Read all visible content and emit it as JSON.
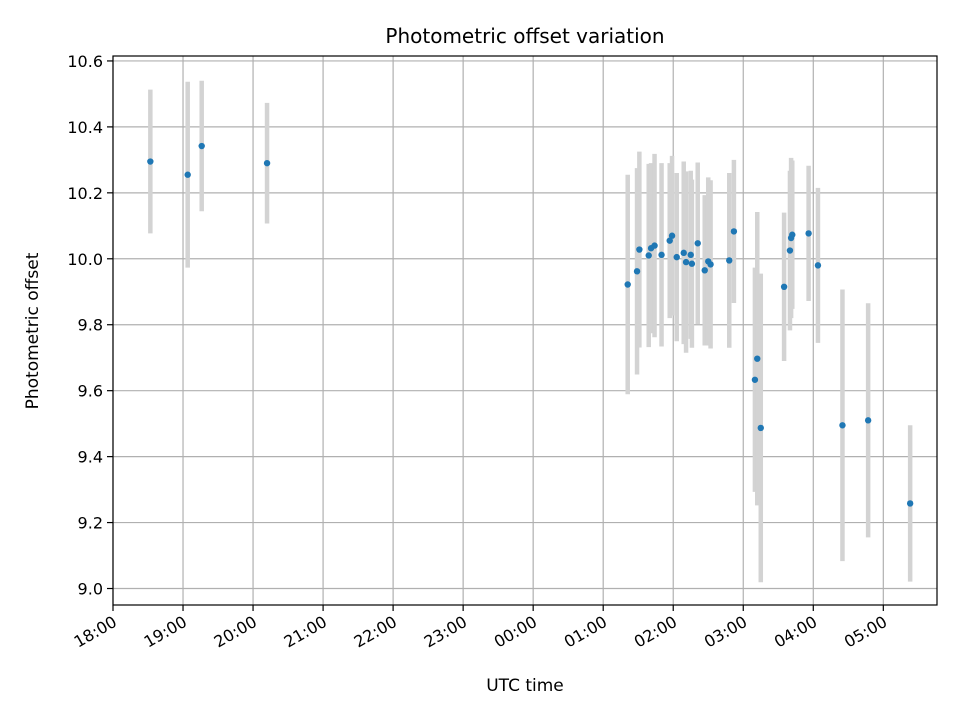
{
  "chart_data": {
    "type": "scatter",
    "title": "Photometric offset variation",
    "xlabel": "UTC time",
    "ylabel": "Photometric offset",
    "x_tick_labels": [
      "18:00",
      "19:00",
      "20:00",
      "21:00",
      "22:00",
      "23:00",
      "00:00",
      "01:00",
      "02:00",
      "03:00",
      "04:00",
      "05:00"
    ],
    "y_tick_labels": [
      "9.0",
      "9.2",
      "9.4",
      "9.6",
      "9.8",
      "10.0",
      "10.2",
      "10.4",
      "10.6"
    ],
    "xlim": [
      "18:00",
      "05:46"
    ],
    "ylim": [
      8.95,
      10.615
    ],
    "grid": true,
    "colors": {
      "points": "#1f77b4",
      "errorbars": "#d3d3d3",
      "grid": "#b0b0b0"
    },
    "points": [
      {
        "x": "18:32",
        "y": 10.295,
        "yerr": 0.218
      },
      {
        "x": "19:04",
        "y": 10.255,
        "yerr": 0.282
      },
      {
        "x": "19:16",
        "y": 10.342,
        "yerr": 0.198
      },
      {
        "x": "20:12",
        "y": 10.29,
        "yerr": 0.183
      },
      {
        "x": "01:21",
        "y": 9.922,
        "yerr": 0.333
      },
      {
        "x": "01:29",
        "y": 9.962,
        "yerr": 0.313
      },
      {
        "x": "01:31",
        "y": 10.028,
        "yerr": 0.297
      },
      {
        "x": "01:39",
        "y": 10.01,
        "yerr": 0.278
      },
      {
        "x": "01:41",
        "y": 10.032,
        "yerr": 0.258
      },
      {
        "x": "01:44",
        "y": 10.04,
        "yerr": 0.278
      },
      {
        "x": "01:50",
        "y": 10.012,
        "yerr": 0.278
      },
      {
        "x": "01:57",
        "y": 10.055,
        "yerr": 0.235
      },
      {
        "x": "01:59",
        "y": 10.07,
        "yerr": 0.242
      },
      {
        "x": "02:03",
        "y": 10.005,
        "yerr": 0.255
      },
      {
        "x": "02:09",
        "y": 10.018,
        "yerr": 0.277
      },
      {
        "x": "02:11",
        "y": 9.99,
        "yerr": 0.275
      },
      {
        "x": "02:15",
        "y": 10.012,
        "yerr": 0.255
      },
      {
        "x": "02:16",
        "y": 9.985,
        "yerr": 0.255
      },
      {
        "x": "02:21",
        "y": 10.047,
        "yerr": 0.245
      },
      {
        "x": "02:27",
        "y": 9.965,
        "yerr": 0.228
      },
      {
        "x": "02:30",
        "y": 9.992,
        "yerr": 0.255
      },
      {
        "x": "02:32",
        "y": 9.983,
        "yerr": 0.255
      },
      {
        "x": "02:48",
        "y": 9.995,
        "yerr": 0.265
      },
      {
        "x": "02:52",
        "y": 10.083,
        "yerr": 0.217
      },
      {
        "x": "03:10",
        "y": 9.633,
        "yerr": 0.34
      },
      {
        "x": "03:12",
        "y": 9.697,
        "yerr": 0.445
      },
      {
        "x": "03:15",
        "y": 9.487,
        "yerr": 0.468
      },
      {
        "x": "03:35",
        "y": 9.915,
        "yerr": 0.225
      },
      {
        "x": "03:40",
        "y": 10.025,
        "yerr": 0.242
      },
      {
        "x": "03:41",
        "y": 10.063,
        "yerr": 0.243
      },
      {
        "x": "03:42",
        "y": 10.073,
        "yerr": 0.225
      },
      {
        "x": "03:56",
        "y": 10.077,
        "yerr": 0.205
      },
      {
        "x": "04:04",
        "y": 9.98,
        "yerr": 0.235
      },
      {
        "x": "04:25",
        "y": 9.495,
        "yerr": 0.412
      },
      {
        "x": "04:47",
        "y": 9.51,
        "yerr": 0.355
      },
      {
        "x": "05:23",
        "y": 9.258,
        "yerr": 0.237
      }
    ]
  }
}
